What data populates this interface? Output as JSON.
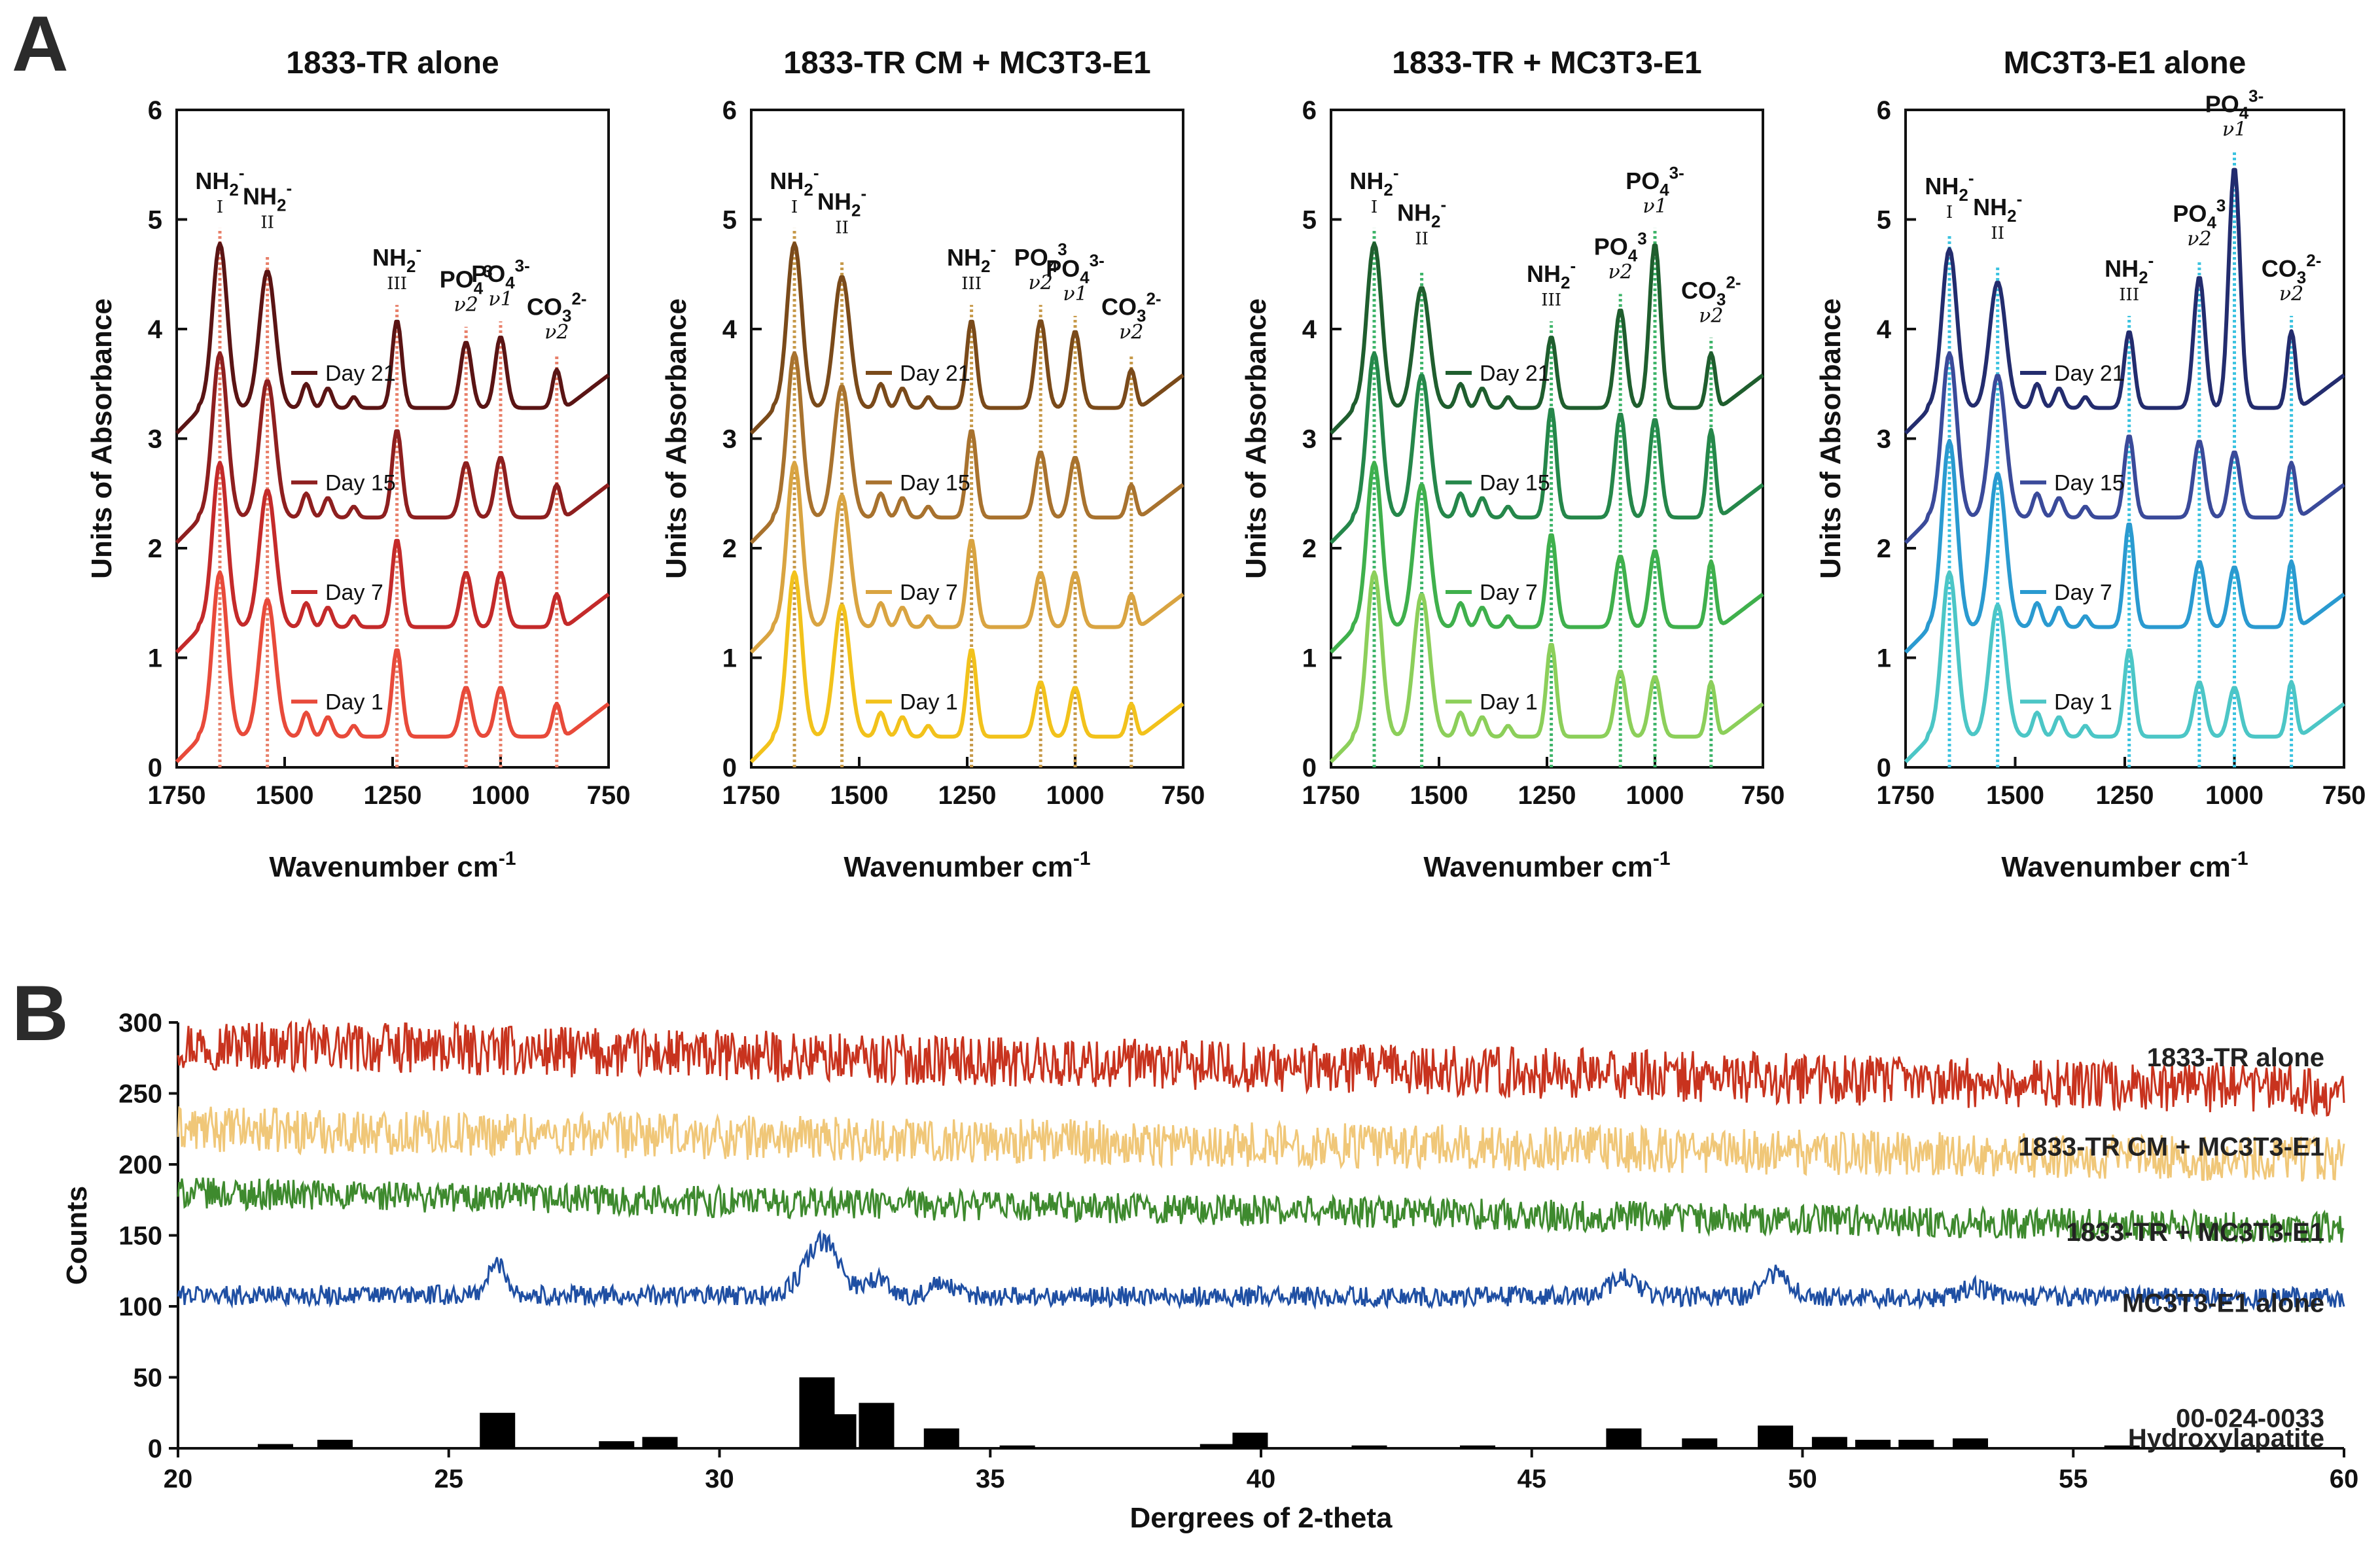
{
  "panel_labels": [
    "A",
    "B"
  ],
  "chart_data": [
    {
      "type": "line",
      "panel": "A",
      "title": "1833-TR alone",
      "xlabel": "Wavenumber cm-1",
      "ylabel": "Units of Absorbance",
      "xlim": [
        1750,
        750
      ],
      "ylim": [
        0,
        6
      ],
      "x_ticks": [
        "1750",
        "1500",
        "1250",
        "1000",
        "750"
      ],
      "y_ticks": [
        "0",
        "1",
        "2",
        "3",
        "4",
        "5",
        "6"
      ],
      "band_color": "#e8806a",
      "bands": [
        {
          "x": 1650,
          "label": "NH2-",
          "sub": "I",
          "nu": ""
        },
        {
          "x": 1540,
          "label": "NH2-",
          "sub": "II",
          "nu": ""
        },
        {
          "x": 1240,
          "label": "NH2-",
          "sub": "III",
          "nu": ""
        },
        {
          "x": 1080,
          "label": "PO43",
          "sub": "",
          "nu": "v2"
        },
        {
          "x": 1000,
          "label": "PO43-",
          "sub": "",
          "nu": "v1"
        },
        {
          "x": 870,
          "label": "CO32-",
          "sub": "",
          "nu": "v2"
        }
      ],
      "series": [
        {
          "name": "Day 21",
          "color": "#5a1414",
          "offset": 3.0,
          "peaks": [
            0.0,
            1.5,
            1.25,
            0.8,
            0.6,
            0.65,
            0.35
          ]
        },
        {
          "name": "Day 15",
          "color": "#8e1f1f",
          "offset": 2.0,
          "peaks": [
            0.0,
            1.5,
            1.25,
            0.8,
            0.5,
            0.55,
            0.3
          ]
        },
        {
          "name": "Day 7",
          "color": "#c42a2a",
          "offset": 1.0,
          "peaks": [
            0.0,
            1.5,
            1.25,
            0.8,
            0.5,
            0.5,
            0.3
          ]
        },
        {
          "name": "Day 1",
          "color": "#e84a3a",
          "offset": 0.0,
          "peaks": [
            0.0,
            1.5,
            1.25,
            0.8,
            0.45,
            0.45,
            0.3
          ]
        }
      ]
    },
    {
      "type": "line",
      "panel": "A",
      "title": "1833-TR CM + MC3T3-E1",
      "xlabel": "Wavenumber cm-1",
      "ylabel": "Units of Absorbance",
      "xlim": [
        1750,
        750
      ],
      "ylim": [
        0,
        6
      ],
      "x_ticks": [
        "1750",
        "1500",
        "1250",
        "1000",
        "750"
      ],
      "y_ticks": [
        "0",
        "1",
        "2",
        "3",
        "4",
        "5",
        "6"
      ],
      "band_color": "#c79a4a",
      "bands": [
        {
          "x": 1650,
          "label": "NH2-",
          "sub": "I",
          "nu": ""
        },
        {
          "x": 1540,
          "label": "NH2-",
          "sub": "II",
          "nu": ""
        },
        {
          "x": 1240,
          "label": "NH2-",
          "sub": "III",
          "nu": ""
        },
        {
          "x": 1080,
          "label": "PO43",
          "sub": "",
          "nu": "v2"
        },
        {
          "x": 1000,
          "label": "PO43-",
          "sub": "",
          "nu": "v1"
        },
        {
          "x": 870,
          "label": "CO32-",
          "sub": "",
          "nu": "v2"
        }
      ],
      "series": [
        {
          "name": "Day 21",
          "color": "#7a4a1a",
          "offset": 3.0,
          "peaks": [
            0.0,
            1.5,
            1.2,
            0.8,
            0.8,
            0.7,
            0.35
          ]
        },
        {
          "name": "Day 15",
          "color": "#a8722e",
          "offset": 2.0,
          "peaks": [
            0.0,
            1.5,
            1.2,
            0.8,
            0.6,
            0.55,
            0.3
          ]
        },
        {
          "name": "Day 7",
          "color": "#d9a441",
          "offset": 1.0,
          "peaks": [
            0.0,
            1.5,
            1.2,
            0.8,
            0.5,
            0.5,
            0.3
          ]
        },
        {
          "name": "Day 1",
          "color": "#f2c21b",
          "offset": 0.0,
          "peaks": [
            0.0,
            1.5,
            1.2,
            0.8,
            0.5,
            0.45,
            0.3
          ]
        }
      ]
    },
    {
      "type": "line",
      "panel": "A",
      "title": "1833-TR + MC3T3-E1",
      "xlabel": "Wavenumber cm-1",
      "ylabel": "Units of Absorbance",
      "xlim": [
        1750,
        750
      ],
      "ylim": [
        0,
        6
      ],
      "x_ticks": [
        "1750",
        "1500",
        "1250",
        "1000",
        "750"
      ],
      "y_ticks": [
        "0",
        "1",
        "2",
        "3",
        "4",
        "5",
        "6"
      ],
      "band_color": "#3fb56a",
      "bands": [
        {
          "x": 1650,
          "label": "NH2-",
          "sub": "I",
          "nu": ""
        },
        {
          "x": 1540,
          "label": "NH2-",
          "sub": "II",
          "nu": ""
        },
        {
          "x": 1240,
          "label": "NH2-",
          "sub": "III",
          "nu": ""
        },
        {
          "x": 1080,
          "label": "PO43",
          "sub": "",
          "nu": "v2"
        },
        {
          "x": 1000,
          "label": "PO43-",
          "sub": "",
          "nu": "v1"
        },
        {
          "x": 870,
          "label": "CO32-",
          "sub": "",
          "nu": "v2"
        }
      ],
      "series": [
        {
          "name": "Day 21",
          "color": "#1f5e2e",
          "offset": 3.0,
          "peaks": [
            0.0,
            1.5,
            1.1,
            0.65,
            0.9,
            1.5,
            0.5
          ]
        },
        {
          "name": "Day 15",
          "color": "#25874a",
          "offset": 2.0,
          "peaks": [
            0.0,
            1.5,
            1.3,
            1.0,
            0.95,
            0.9,
            0.8
          ]
        },
        {
          "name": "Day 7",
          "color": "#3fb04c",
          "offset": 1.0,
          "peaks": [
            0.0,
            1.5,
            1.3,
            0.85,
            0.65,
            0.7,
            0.6
          ]
        },
        {
          "name": "Day 1",
          "color": "#8ccf5a",
          "offset": 0.0,
          "peaks": [
            0.0,
            1.5,
            1.3,
            0.85,
            0.6,
            0.55,
            0.5
          ]
        }
      ]
    },
    {
      "type": "line",
      "panel": "A",
      "title": "MC3T3-E1 alone",
      "xlabel": "Wavenumber cm-1",
      "ylabel": "Units of Absorbance",
      "xlim": [
        1750,
        750
      ],
      "ylim": [
        0,
        6
      ],
      "x_ticks": [
        "1750",
        "1500",
        "1250",
        "1000",
        "750"
      ],
      "y_ticks": [
        "0",
        "1",
        "2",
        "3",
        "4",
        "5",
        "6"
      ],
      "band_color": "#3cc3e0",
      "bands": [
        {
          "x": 1650,
          "label": "NH2-",
          "sub": "I",
          "nu": ""
        },
        {
          "x": 1540,
          "label": "NH2-",
          "sub": "II",
          "nu": ""
        },
        {
          "x": 1240,
          "label": "NH2-",
          "sub": "III",
          "nu": ""
        },
        {
          "x": 1080,
          "label": "PO43",
          "sub": "",
          "nu": "v2"
        },
        {
          "x": 1000,
          "label": "PO43-",
          "sub": "",
          "nu": "v1"
        },
        {
          "x": 870,
          "label": "CO32-",
          "sub": "",
          "nu": "v2"
        }
      ],
      "series": [
        {
          "name": "Day 21",
          "color": "#232c6e",
          "offset": 3.0,
          "peaks": [
            0.0,
            1.45,
            1.15,
            0.7,
            1.2,
            2.2,
            0.7
          ]
        },
        {
          "name": "Day 15",
          "color": "#3a4a9a",
          "offset": 2.0,
          "peaks": [
            0.0,
            1.5,
            1.3,
            0.75,
            0.7,
            0.6,
            0.5
          ]
        },
        {
          "name": "Day 7",
          "color": "#2a9ad0",
          "offset": 1.0,
          "peaks": [
            0.0,
            1.7,
            1.4,
            0.95,
            0.6,
            0.55,
            0.6
          ]
        },
        {
          "name": "Day 1",
          "color": "#4cc6c6",
          "offset": 0.0,
          "peaks": [
            0.0,
            1.5,
            1.2,
            0.8,
            0.5,
            0.45,
            0.5
          ]
        }
      ]
    },
    {
      "type": "line",
      "panel": "B",
      "xlabel": "Dergrees of 2-theta",
      "ylabel": "Counts",
      "xlim": [
        20,
        60
      ],
      "ylim": [
        0,
        300
      ],
      "x_ticks": [
        "20",
        "25",
        "30",
        "35",
        "40",
        "45",
        "50",
        "55",
        "60"
      ],
      "y_ticks": [
        "0",
        "50",
        "100",
        "150",
        "200",
        "250",
        "300"
      ],
      "series": [
        {
          "name": "1833-TR alone",
          "color": "#c8331e",
          "start": 285,
          "end": 252,
          "noise": 18,
          "peaks": []
        },
        {
          "name": "1833-TR CM + MC3T3-E1",
          "color": "#f0c778",
          "start": 225,
          "end": 203,
          "noise": 16,
          "peaks": []
        },
        {
          "name": "1833-TR + MC3T3-E1",
          "color": "#3e8a2e",
          "start": 180,
          "end": 155,
          "noise": 11,
          "peaks": []
        },
        {
          "name": "MC3T3-E1 alone",
          "color": "#1f4fa3",
          "start": 108,
          "end": 106,
          "noise": 7,
          "peaks": [
            [
              25.9,
              22,
              0.25
            ],
            [
              31.9,
              38,
              0.45
            ],
            [
              32.9,
              12,
              0.3
            ],
            [
              34.1,
              8,
              0.3
            ],
            [
              46.7,
              14,
              0.35
            ],
            [
              49.5,
              16,
              0.35
            ],
            [
              53.2,
              8,
              0.3
            ]
          ]
        }
      ],
      "reference": {
        "name": "00-024-0033",
        "subtitle": "Hydroxylapatite",
        "color": "#000000",
        "sticks": [
          [
            21.8,
            3
          ],
          [
            22.9,
            6
          ],
          [
            25.9,
            25
          ],
          [
            28.1,
            5
          ],
          [
            28.9,
            8
          ],
          [
            31.8,
            50
          ],
          [
            32.2,
            24
          ],
          [
            32.9,
            32
          ],
          [
            34.1,
            14
          ],
          [
            35.5,
            2
          ],
          [
            39.2,
            3
          ],
          [
            39.8,
            11
          ],
          [
            42.0,
            2
          ],
          [
            44.0,
            2
          ],
          [
            46.7,
            14
          ],
          [
            48.1,
            7
          ],
          [
            49.5,
            16
          ],
          [
            50.5,
            8
          ],
          [
            51.3,
            6
          ],
          [
            52.1,
            6
          ],
          [
            53.1,
            7
          ],
          [
            55.9,
            2
          ]
        ]
      }
    }
  ]
}
